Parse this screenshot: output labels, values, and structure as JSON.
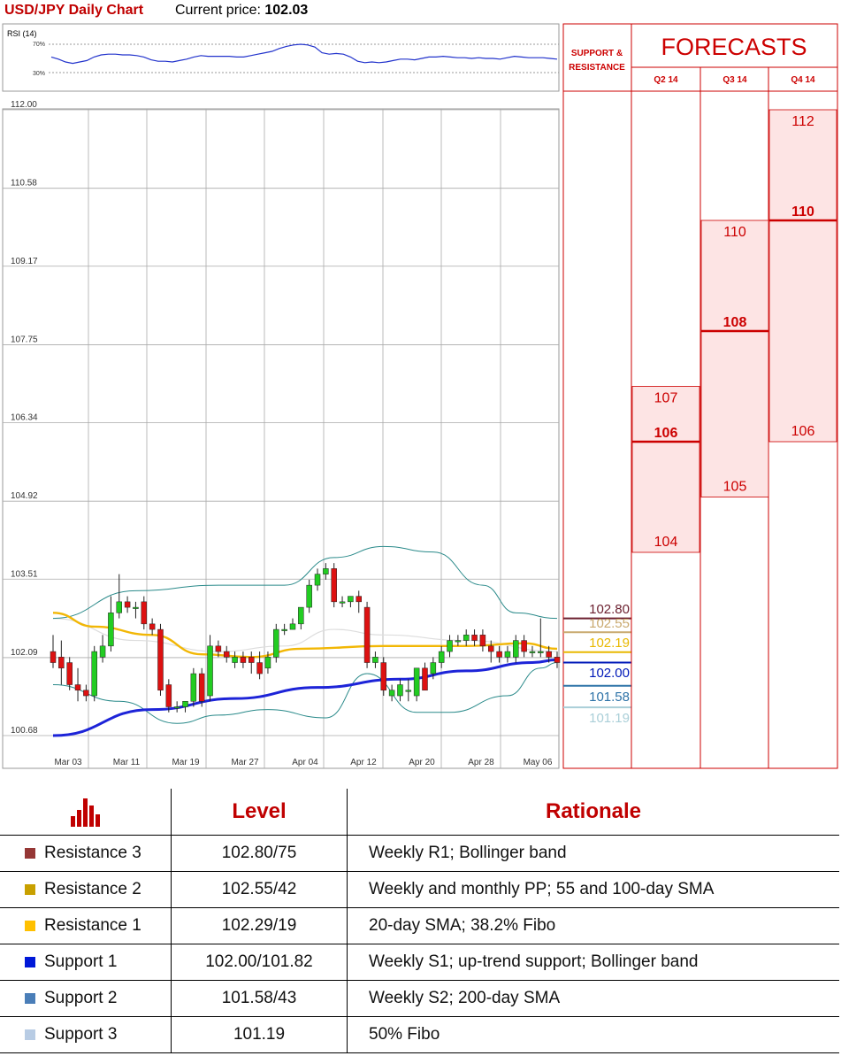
{
  "header": {
    "title": "USD/JPY Daily Chart",
    "price_label": "Current price:",
    "price_value": "102.03"
  },
  "rsi": {
    "label": "RSI (14)",
    "levels": [
      "70%",
      "30%"
    ],
    "values": [
      52,
      49,
      45,
      43,
      45,
      47,
      52,
      55,
      56,
      56,
      55,
      55,
      54,
      52,
      48,
      46,
      46,
      45,
      47,
      49,
      52,
      54,
      53,
      53,
      53,
      53,
      52,
      52,
      54,
      56,
      58,
      60,
      64,
      67,
      69,
      70,
      69,
      66,
      58,
      56,
      57,
      56,
      52,
      46,
      44,
      45,
      44,
      45,
      47,
      49,
      49,
      48,
      50,
      52,
      52,
      53,
      52,
      51,
      51,
      50,
      51,
      50,
      50,
      49,
      51,
      53,
      52,
      51,
      51,
      51,
      50,
      49
    ]
  },
  "chart_data": {
    "type": "candlestick",
    "y_ticks": [
      "112.00",
      "110.58",
      "109.17",
      "107.75",
      "106.34",
      "104.92",
      "103.51",
      "102.09",
      "100.68"
    ],
    "x_ticks": [
      "Mar 03",
      "Mar 11",
      "Mar 19",
      "Mar 27",
      "Apr 04",
      "Apr 12",
      "Apr 20",
      "Apr 28",
      "May 06"
    ],
    "ylim": [
      100.68,
      112.0
    ],
    "candles": [
      {
        "o": 102.2,
        "h": 102.5,
        "l": 101.9,
        "c": 102.0
      },
      {
        "o": 102.1,
        "h": 102.4,
        "l": 101.6,
        "c": 101.9
      },
      {
        "o": 102.0,
        "h": 102.1,
        "l": 101.5,
        "c": 101.6
      },
      {
        "o": 101.6,
        "h": 101.9,
        "l": 101.3,
        "c": 101.5
      },
      {
        "o": 101.5,
        "h": 101.6,
        "l": 101.3,
        "c": 101.4
      },
      {
        "o": 101.4,
        "h": 102.3,
        "l": 101.3,
        "c": 102.2
      },
      {
        "o": 102.1,
        "h": 102.5,
        "l": 102.0,
        "c": 102.3
      },
      {
        "o": 102.3,
        "h": 103.2,
        "l": 102.2,
        "c": 102.9
      },
      {
        "o": 102.9,
        "h": 103.6,
        "l": 102.8,
        "c": 103.1
      },
      {
        "o": 103.1,
        "h": 103.2,
        "l": 102.9,
        "c": 103.0
      },
      {
        "o": 103.0,
        "h": 103.1,
        "l": 102.8,
        "c": 103.0
      },
      {
        "o": 103.1,
        "h": 103.2,
        "l": 102.6,
        "c": 102.7
      },
      {
        "o": 102.7,
        "h": 102.8,
        "l": 102.5,
        "c": 102.6
      },
      {
        "o": 102.6,
        "h": 102.7,
        "l": 101.4,
        "c": 101.5
      },
      {
        "o": 101.6,
        "h": 101.7,
        "l": 101.1,
        "c": 101.2
      },
      {
        "o": 101.2,
        "h": 101.3,
        "l": 101.1,
        "c": 101.2
      },
      {
        "o": 101.2,
        "h": 101.3,
        "l": 101.1,
        "c": 101.3
      },
      {
        "o": 101.3,
        "h": 101.9,
        "l": 101.2,
        "c": 101.8
      },
      {
        "o": 101.8,
        "h": 101.9,
        "l": 101.2,
        "c": 101.3
      },
      {
        "o": 101.4,
        "h": 102.5,
        "l": 101.3,
        "c": 102.3
      },
      {
        "o": 102.3,
        "h": 102.4,
        "l": 102.1,
        "c": 102.2
      },
      {
        "o": 102.2,
        "h": 102.3,
        "l": 102.0,
        "c": 102.1
      },
      {
        "o": 102.0,
        "h": 102.2,
        "l": 101.9,
        "c": 102.1
      },
      {
        "o": 102.1,
        "h": 102.2,
        "l": 101.9,
        "c": 102.0
      },
      {
        "o": 102.1,
        "h": 102.2,
        "l": 101.8,
        "c": 102.0
      },
      {
        "o": 102.0,
        "h": 102.2,
        "l": 101.7,
        "c": 101.8
      },
      {
        "o": 101.9,
        "h": 102.2,
        "l": 101.8,
        "c": 102.1
      },
      {
        "o": 102.1,
        "h": 102.7,
        "l": 102.0,
        "c": 102.6
      },
      {
        "o": 102.6,
        "h": 102.7,
        "l": 102.5,
        "c": 102.6
      },
      {
        "o": 102.6,
        "h": 102.8,
        "l": 102.6,
        "c": 102.7
      },
      {
        "o": 102.7,
        "h": 103.0,
        "l": 102.6,
        "c": 103.0
      },
      {
        "o": 103.0,
        "h": 103.5,
        "l": 102.9,
        "c": 103.4
      },
      {
        "o": 103.4,
        "h": 103.7,
        "l": 103.3,
        "c": 103.6
      },
      {
        "o": 103.6,
        "h": 103.8,
        "l": 103.5,
        "c": 103.7
      },
      {
        "o": 103.7,
        "h": 103.8,
        "l": 103.0,
        "c": 103.1
      },
      {
        "o": 103.1,
        "h": 103.2,
        "l": 103.0,
        "c": 103.1
      },
      {
        "o": 103.1,
        "h": 103.2,
        "l": 103.0,
        "c": 103.2
      },
      {
        "o": 103.2,
        "h": 103.3,
        "l": 102.9,
        "c": 103.1
      },
      {
        "o": 103.0,
        "h": 103.1,
        "l": 101.9,
        "c": 102.0
      },
      {
        "o": 102.0,
        "h": 102.2,
        "l": 101.9,
        "c": 102.1
      },
      {
        "o": 102.0,
        "h": 102.1,
        "l": 101.4,
        "c": 101.5
      },
      {
        "o": 101.4,
        "h": 101.6,
        "l": 101.3,
        "c": 101.5
      },
      {
        "o": 101.4,
        "h": 101.7,
        "l": 101.3,
        "c": 101.6
      },
      {
        "o": 101.5,
        "h": 101.7,
        "l": 101.3,
        "c": 101.5
      },
      {
        "o": 101.4,
        "h": 101.9,
        "l": 101.3,
        "c": 101.9
      },
      {
        "o": 101.9,
        "h": 102.0,
        "l": 101.5,
        "c": 101.5
      },
      {
        "o": 101.8,
        "h": 102.1,
        "l": 101.7,
        "c": 102.0
      },
      {
        "o": 102.0,
        "h": 102.3,
        "l": 101.9,
        "c": 102.2
      },
      {
        "o": 102.2,
        "h": 102.5,
        "l": 102.1,
        "c": 102.4
      },
      {
        "o": 102.4,
        "h": 102.5,
        "l": 102.3,
        "c": 102.4
      },
      {
        "o": 102.4,
        "h": 102.6,
        "l": 102.3,
        "c": 102.5
      },
      {
        "o": 102.5,
        "h": 102.6,
        "l": 102.3,
        "c": 102.4
      },
      {
        "o": 102.5,
        "h": 102.6,
        "l": 102.2,
        "c": 102.3
      },
      {
        "o": 102.3,
        "h": 102.4,
        "l": 102.0,
        "c": 102.2
      },
      {
        "o": 102.2,
        "h": 102.3,
        "l": 102.0,
        "c": 102.1
      },
      {
        "o": 102.1,
        "h": 102.3,
        "l": 102.0,
        "c": 102.2
      },
      {
        "o": 102.1,
        "h": 102.5,
        "l": 102.0,
        "c": 102.4
      },
      {
        "o": 102.4,
        "h": 102.5,
        "l": 102.1,
        "c": 102.2
      },
      {
        "o": 102.2,
        "h": 102.3,
        "l": 102.1,
        "c": 102.2
      },
      {
        "o": 102.2,
        "h": 102.8,
        "l": 102.1,
        "c": 102.2
      },
      {
        "o": 102.2,
        "h": 102.3,
        "l": 102.0,
        "c": 102.1
      },
      {
        "o": 102.1,
        "h": 102.2,
        "l": 101.9,
        "c": 102.0
      }
    ],
    "bollinger_upper": [
      [
        0,
        102.8
      ],
      [
        10,
        103.3
      ],
      [
        20,
        103.4
      ],
      [
        28,
        103.4
      ],
      [
        34,
        103.9
      ],
      [
        40,
        104.1
      ],
      [
        46,
        104.0
      ],
      [
        52,
        103.4
      ],
      [
        56,
        102.9
      ],
      [
        61,
        102.8
      ]
    ],
    "bollinger_lower": [
      [
        0,
        101.6
      ],
      [
        8,
        101.3
      ],
      [
        15,
        100.9
      ],
      [
        20,
        101.05
      ],
      [
        26,
        101.15
      ],
      [
        33,
        101.0
      ],
      [
        38,
        101.8
      ],
      [
        44,
        101.1
      ],
      [
        48,
        101.1
      ],
      [
        55,
        101.4
      ],
      [
        59,
        101.9
      ],
      [
        61,
        102.0
      ]
    ],
    "sma_20": [
      [
        0,
        102.8
      ],
      [
        10,
        102.4
      ],
      [
        20,
        102.2
      ],
      [
        28,
        102.3
      ],
      [
        34,
        102.6
      ],
      [
        40,
        102.5
      ],
      [
        50,
        102.4
      ],
      [
        61,
        102.2
      ]
    ],
    "sma_yellow": [
      [
        0,
        102.9
      ],
      [
        5,
        102.65
      ],
      [
        12,
        102.5
      ],
      [
        18,
        102.15
      ],
      [
        24,
        102.1
      ],
      [
        30,
        102.25
      ],
      [
        40,
        102.3
      ],
      [
        50,
        102.3
      ],
      [
        57,
        102.35
      ],
      [
        61,
        102.25
      ]
    ],
    "sma_blue": [
      [
        0,
        100.68
      ],
      [
        12,
        101.15
      ],
      [
        22,
        101.35
      ],
      [
        32,
        101.55
      ],
      [
        42,
        101.7
      ],
      [
        50,
        101.85
      ],
      [
        58,
        102.0
      ],
      [
        61,
        102.05
      ]
    ]
  },
  "support_resistance": {
    "header": "SUPPORT & RESISTANCE",
    "levels": [
      {
        "label": "102.80",
        "value": 102.8,
        "color": "#6b1f2e"
      },
      {
        "label": "102.55",
        "value": 102.55,
        "color": "#c9a96e"
      },
      {
        "label": "102.19",
        "value": 102.19,
        "color": "#e8b800"
      },
      {
        "label": "102.00",
        "value": 102.0,
        "color": "#0018b8"
      },
      {
        "label": "101.58",
        "value": 101.58,
        "color": "#2e73a8"
      },
      {
        "label": "101.19",
        "value": 101.19,
        "color": "#aacfd8"
      }
    ]
  },
  "forecasts": {
    "title": "FORECASTS",
    "columns": [
      {
        "quarter": "Q2 14",
        "high": "107",
        "mid": "106",
        "low": "104",
        "vhigh": 107,
        "vmid": 106,
        "vlow": 104
      },
      {
        "quarter": "Q3 14",
        "high": "110",
        "mid": "108",
        "low": "105",
        "vhigh": 110,
        "vmid": 108,
        "vlow": 105
      },
      {
        "quarter": "Q4 14",
        "high": "112",
        "mid": "110",
        "low": "106",
        "vhigh": 112,
        "vmid": 110,
        "vlow": 106
      }
    ]
  },
  "table": {
    "col_level": "Level",
    "col_rationale": "Rationale",
    "rows": [
      {
        "name": "Resistance 3",
        "level": "102.80/75",
        "rationale": "Weekly R1; Bollinger band",
        "color": "#953735"
      },
      {
        "name": "Resistance 2",
        "level": "102.55/42",
        "rationale": "Weekly and monthly PP; 55 and 100-day SMA",
        "color": "#c8a000"
      },
      {
        "name": "Resistance 1",
        "level": "102.29/19",
        "rationale": "20-day SMA; 38.2% Fibo",
        "color": "#ffc000"
      },
      {
        "name": "Support 1",
        "level": "102.00/101.82",
        "rationale": "Weekly S1; up-trend support; Bollinger band",
        "color": "#0018d8"
      },
      {
        "name": "Support 2",
        "level": "101.58/43",
        "rationale": "Weekly S2; 200-day SMA",
        "color": "#4a7eb8"
      },
      {
        "name": "Support 3",
        "level": "101.19",
        "rationale": "50% Fibo",
        "color": "#b8cce4"
      }
    ]
  },
  "colors": {
    "accent": "#c00000",
    "forecast_fill": "#fde4e4",
    "bull": "#22cc22",
    "bear": "#dd1111"
  }
}
